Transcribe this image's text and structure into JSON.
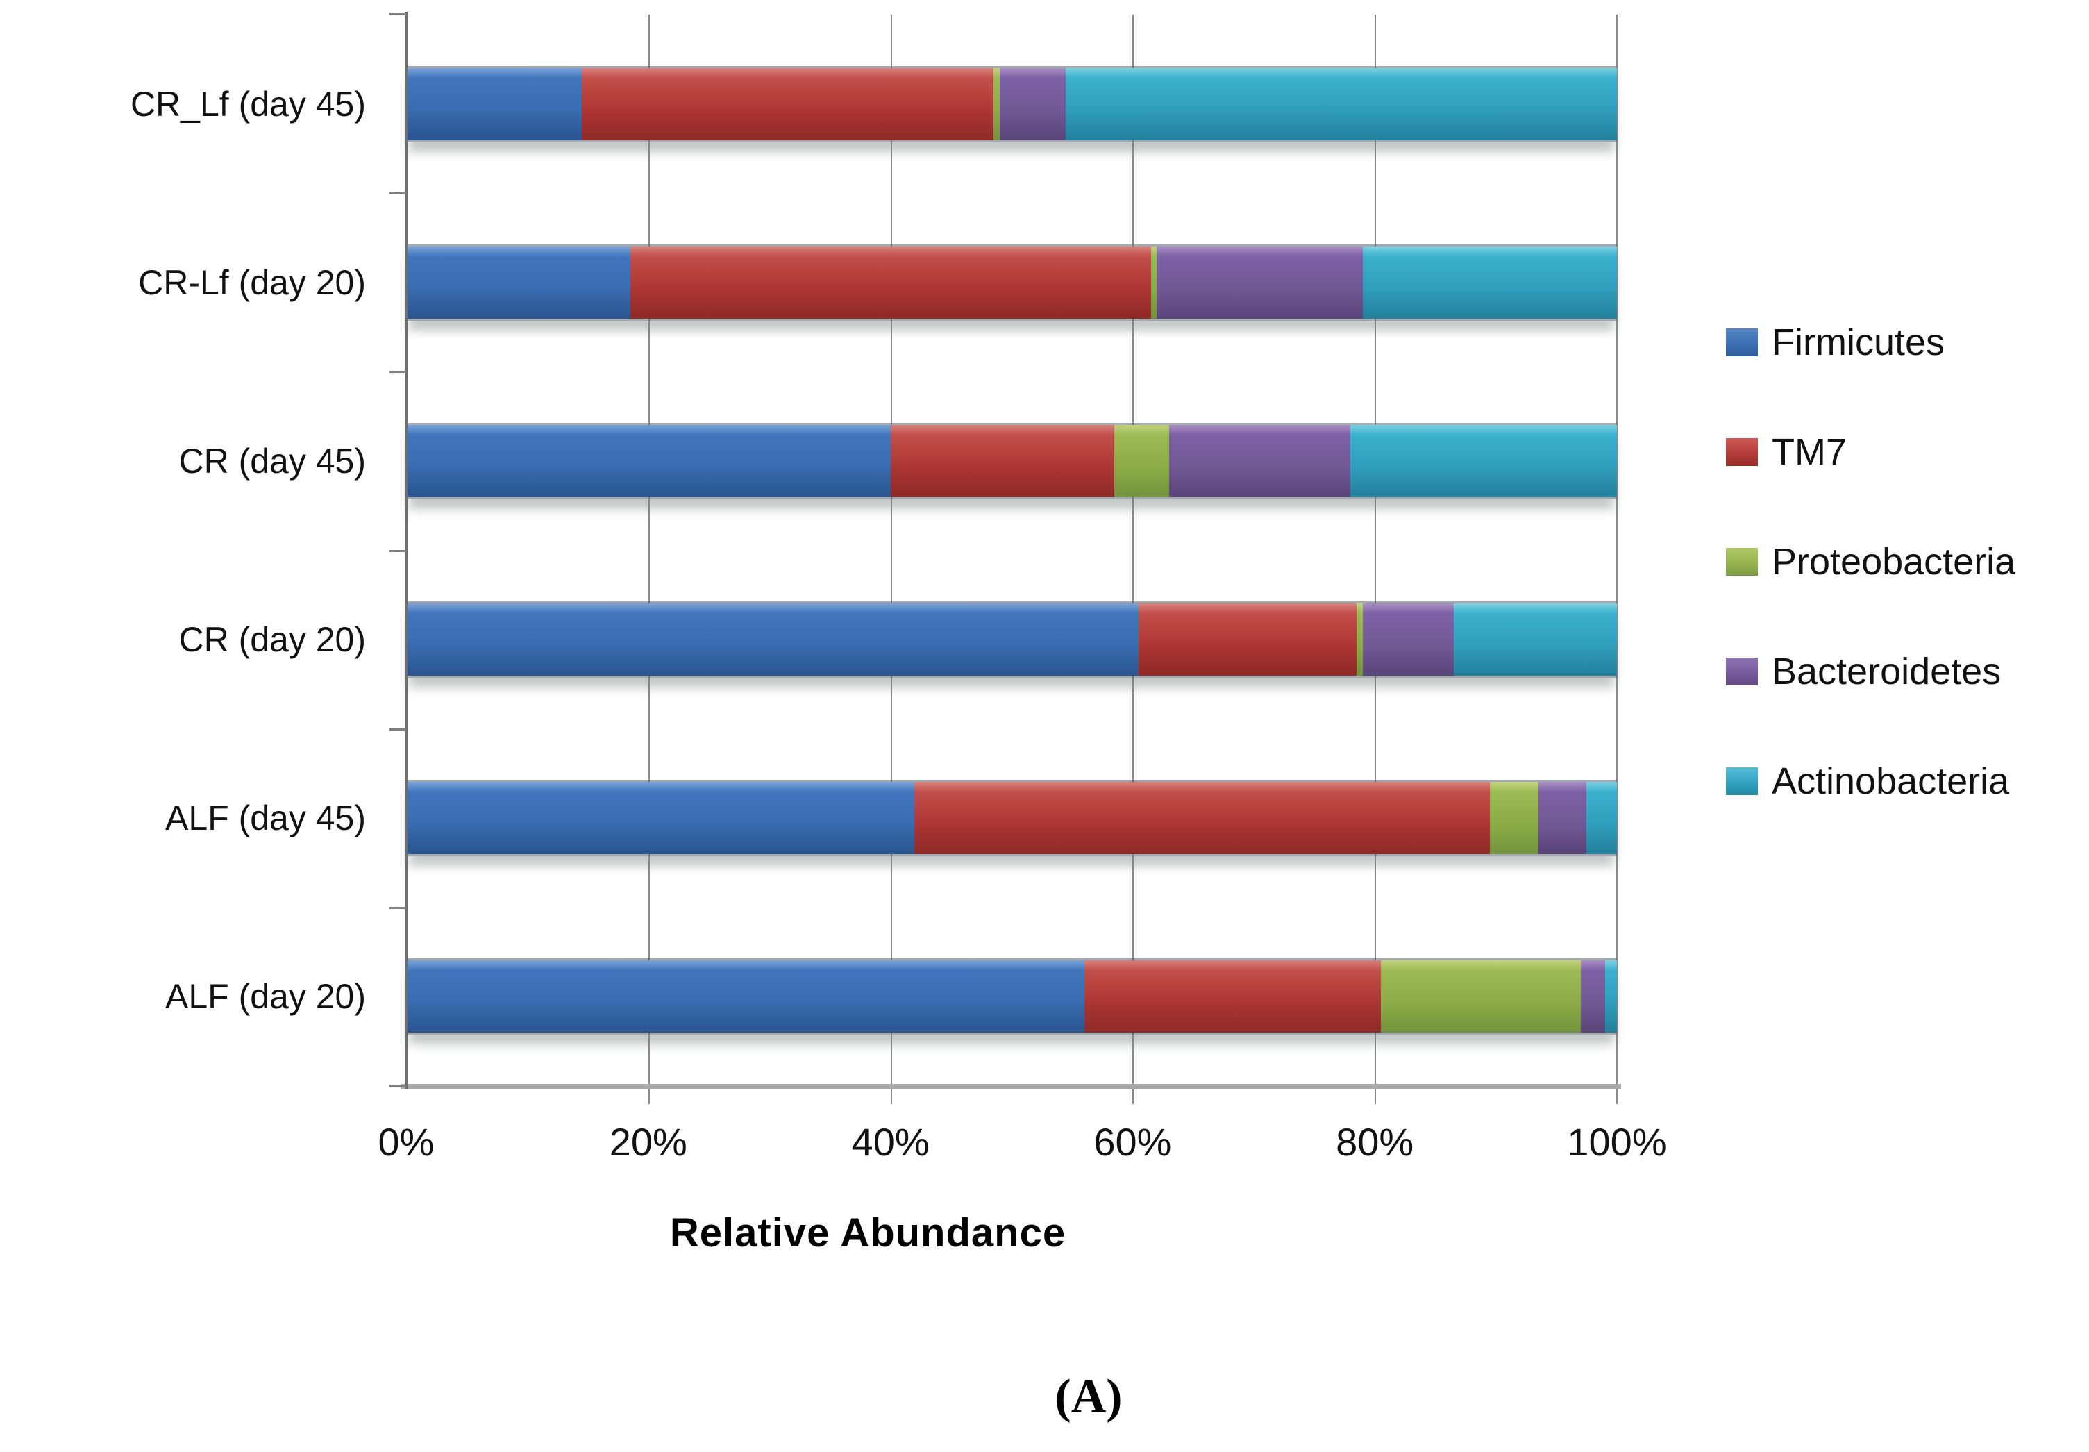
{
  "chart_data": {
    "type": "bar",
    "orientation": "horizontal",
    "stacked": true,
    "units": "percent",
    "title": "",
    "xlabel": "Relative Abundance",
    "ylabel": "",
    "xlim": [
      0,
      100
    ],
    "x_ticks": [
      "0%",
      "20%",
      "40%",
      "60%",
      "80%",
      "100%"
    ],
    "grid": true,
    "legend_position": "right",
    "categories": [
      "CR_Lf (day 45)",
      "CR-Lf (day 20)",
      "CR (day 45)",
      "CR (day 20)",
      "ALF (day 45)",
      "ALF (day 20)"
    ],
    "series": [
      {
        "name": "Firmicutes",
        "color": "#3a6db2",
        "values": [
          14.5,
          18.5,
          40.0,
          60.5,
          42.0,
          56.0
        ]
      },
      {
        "name": "TM7",
        "color": "#b03a37",
        "values": [
          34.0,
          43.0,
          18.5,
          18.0,
          47.5,
          24.5
        ]
      },
      {
        "name": "Proteobacteria",
        "color": "#93b24d",
        "values": [
          0.5,
          0.5,
          4.5,
          0.5,
          4.0,
          16.5
        ]
      },
      {
        "name": "Bacteroidetes",
        "color": "#74599a",
        "values": [
          5.5,
          17.0,
          15.0,
          7.5,
          4.0,
          2.0
        ]
      },
      {
        "name": "Actinobacteria",
        "color": "#2fa0bf",
        "values": [
          45.5,
          21.0,
          22.0,
          13.5,
          2.5,
          1.0
        ]
      }
    ]
  },
  "caption": "(A)",
  "colors": {
    "gridline": "#8a8a8a",
    "y_axis": "#6e6e6e",
    "x_axis": "#a9a9a9",
    "text": "#111111"
  }
}
